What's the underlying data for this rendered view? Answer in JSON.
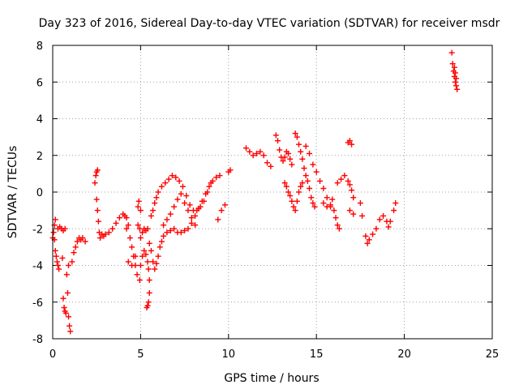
{
  "chart_data": {
    "type": "scatter",
    "title": "Day 323 of 2016, Sidereal Day-to-day VTEC variation (SDTVAR) for receiver msdr",
    "xlabel": "GPS time / hours",
    "ylabel": "SDTVAR / TECUs",
    "xlim": [
      0,
      25
    ],
    "ylim": [
      -8,
      8
    ],
    "xticks": [
      0,
      5,
      10,
      15,
      20,
      25
    ],
    "yticks": [
      -8,
      -6,
      -4,
      -2,
      0,
      2,
      4,
      6,
      8
    ],
    "grid": true,
    "marker": "+",
    "color": "#ff0000",
    "series": [
      {
        "name": "SDTVAR",
        "points": [
          [
            0.0,
            -2.5
          ],
          [
            0.05,
            -2.2
          ],
          [
            0.1,
            -1.8
          ],
          [
            0.15,
            -1.5
          ],
          [
            0.1,
            -2.6
          ],
          [
            0.15,
            -3.2
          ],
          [
            0.2,
            -3.5
          ],
          [
            0.25,
            -3.8
          ],
          [
            0.3,
            -4.0
          ],
          [
            0.35,
            -4.2
          ],
          [
            0.3,
            -2.0
          ],
          [
            0.4,
            -1.9
          ],
          [
            0.5,
            -2.0
          ],
          [
            0.6,
            -2.1
          ],
          [
            0.7,
            -2.0
          ],
          [
            0.55,
            -3.6
          ],
          [
            0.6,
            -5.8
          ],
          [
            0.65,
            -6.3
          ],
          [
            0.7,
            -6.5
          ],
          [
            0.75,
            -6.6
          ],
          [
            0.8,
            -4.5
          ],
          [
            0.85,
            -5.5
          ],
          [
            0.9,
            -6.8
          ],
          [
            0.95,
            -7.3
          ],
          [
            1.0,
            -7.6
          ],
          [
            0.9,
            -4.0
          ],
          [
            1.1,
            -3.8
          ],
          [
            1.2,
            -3.3
          ],
          [
            1.3,
            -3.0
          ],
          [
            1.4,
            -2.7
          ],
          [
            1.5,
            -2.5
          ],
          [
            1.6,
            -2.6
          ],
          [
            1.7,
            -2.5
          ],
          [
            1.85,
            -2.7
          ],
          [
            2.4,
            0.5
          ],
          [
            2.45,
            0.9
          ],
          [
            2.5,
            1.1
          ],
          [
            2.55,
            1.2
          ],
          [
            2.5,
            -0.4
          ],
          [
            2.55,
            -1.0
          ],
          [
            2.6,
            -1.6
          ],
          [
            2.65,
            -2.2
          ],
          [
            2.7,
            -2.5
          ],
          [
            2.8,
            -2.3
          ],
          [
            2.9,
            -2.4
          ],
          [
            3.0,
            -2.3
          ],
          [
            3.2,
            -2.2
          ],
          [
            3.4,
            -2.0
          ],
          [
            3.6,
            -1.7
          ],
          [
            3.8,
            -1.4
          ],
          [
            4.0,
            -1.2
          ],
          [
            4.2,
            -1.4
          ],
          [
            4.3,
            -1.8
          ],
          [
            4.4,
            -2.5
          ],
          [
            4.5,
            -3.0
          ],
          [
            4.6,
            -3.5
          ],
          [
            4.7,
            -4.0
          ],
          [
            4.8,
            -4.5
          ],
          [
            4.95,
            -4.8
          ],
          [
            5.0,
            -4.0
          ],
          [
            5.1,
            -3.5
          ],
          [
            5.2,
            -3.2
          ],
          [
            5.3,
            -3.4
          ],
          [
            5.4,
            -3.8
          ],
          [
            5.45,
            -4.2
          ],
          [
            5.5,
            -4.8
          ],
          [
            5.5,
            -5.5
          ],
          [
            5.45,
            -6.0
          ],
          [
            5.4,
            -6.2
          ],
          [
            5.35,
            -6.3
          ],
          [
            4.1,
            -1.3
          ],
          [
            4.2,
            -2.0
          ],
          [
            4.3,
            -3.8
          ],
          [
            4.5,
            -4.0
          ],
          [
            4.7,
            -3.5
          ],
          [
            4.85,
            -1.8
          ],
          [
            4.9,
            -0.5
          ],
          [
            4.85,
            -0.8
          ],
          [
            5.0,
            -1.0
          ],
          [
            4.95,
            -2.0
          ],
          [
            5.0,
            -2.5
          ],
          [
            5.1,
            -2.2
          ],
          [
            5.2,
            -2.0
          ],
          [
            5.3,
            -2.1
          ],
          [
            5.4,
            -2.0
          ],
          [
            5.5,
            -2.8
          ],
          [
            5.6,
            -3.2
          ],
          [
            5.7,
            -3.8
          ],
          [
            5.8,
            -4.2
          ],
          [
            5.9,
            -3.9
          ],
          [
            6.0,
            -3.5
          ],
          [
            6.1,
            -3.0
          ],
          [
            6.2,
            -2.7
          ],
          [
            6.3,
            -2.4
          ],
          [
            6.5,
            -2.2
          ],
          [
            6.7,
            -2.1
          ],
          [
            6.9,
            -2.0
          ],
          [
            7.1,
            -2.2
          ],
          [
            7.3,
            -2.2
          ],
          [
            7.5,
            -2.1
          ],
          [
            7.7,
            -2.0
          ],
          [
            7.9,
            -1.7
          ],
          [
            8.1,
            -1.3
          ],
          [
            8.3,
            -0.9
          ],
          [
            8.5,
            -0.5
          ],
          [
            8.7,
            -0.1
          ],
          [
            8.9,
            0.3
          ],
          [
            9.1,
            0.6
          ],
          [
            9.3,
            0.8
          ],
          [
            9.5,
            0.9
          ],
          [
            5.6,
            -1.3
          ],
          [
            5.7,
            -1.0
          ],
          [
            5.8,
            -0.6
          ],
          [
            5.9,
            -0.3
          ],
          [
            6.0,
            0.0
          ],
          [
            6.2,
            0.3
          ],
          [
            6.4,
            0.5
          ],
          [
            6.6,
            0.7
          ],
          [
            6.8,
            0.9
          ],
          [
            7.0,
            0.8
          ],
          [
            7.2,
            0.6
          ],
          [
            7.4,
            0.3
          ],
          [
            7.6,
            -0.2
          ],
          [
            7.8,
            -0.7
          ],
          [
            8.0,
            -1.0
          ],
          [
            8.2,
            -1.0
          ],
          [
            8.4,
            -0.8
          ],
          [
            8.6,
            -0.5
          ],
          [
            8.8,
            0.0
          ],
          [
            9.0,
            0.5
          ],
          [
            6.3,
            -1.8
          ],
          [
            6.5,
            -1.5
          ],
          [
            6.7,
            -1.2
          ],
          [
            6.9,
            -0.8
          ],
          [
            7.1,
            -0.4
          ],
          [
            7.3,
            -0.1
          ],
          [
            7.5,
            -0.6
          ],
          [
            7.7,
            -1.0
          ],
          [
            7.9,
            -1.4
          ],
          [
            8.1,
            -1.8
          ],
          [
            9.4,
            -1.5
          ],
          [
            9.6,
            -1.0
          ],
          [
            9.8,
            -0.7
          ],
          [
            10.0,
            1.1
          ],
          [
            10.1,
            1.2
          ],
          [
            11.0,
            2.4
          ],
          [
            11.2,
            2.2
          ],
          [
            11.4,
            2.0
          ],
          [
            11.6,
            2.1
          ],
          [
            11.8,
            2.2
          ],
          [
            12.0,
            2.0
          ],
          [
            12.2,
            1.6
          ],
          [
            12.4,
            1.4
          ],
          [
            12.7,
            3.1
          ],
          [
            12.8,
            2.8
          ],
          [
            12.9,
            2.3
          ],
          [
            13.0,
            1.9
          ],
          [
            13.1,
            1.7
          ],
          [
            13.2,
            1.9
          ],
          [
            13.3,
            2.2
          ],
          [
            13.4,
            2.1
          ],
          [
            13.5,
            1.8
          ],
          [
            13.6,
            1.5
          ],
          [
            13.2,
            0.5
          ],
          [
            13.3,
            0.3
          ],
          [
            13.4,
            0.0
          ],
          [
            13.5,
            -0.2
          ],
          [
            13.6,
            -0.5
          ],
          [
            13.7,
            -0.8
          ],
          [
            13.8,
            -1.0
          ],
          [
            13.9,
            -0.5
          ],
          [
            14.0,
            0.0
          ],
          [
            14.1,
            0.3
          ],
          [
            14.2,
            0.5
          ],
          [
            13.8,
            3.2
          ],
          [
            13.9,
            3.0
          ],
          [
            14.0,
            2.6
          ],
          [
            14.1,
            2.2
          ],
          [
            14.2,
            1.8
          ],
          [
            14.3,
            1.3
          ],
          [
            14.4,
            0.9
          ],
          [
            14.5,
            0.6
          ],
          [
            14.6,
            0.2
          ],
          [
            14.7,
            -0.3
          ],
          [
            14.8,
            -0.6
          ],
          [
            14.9,
            -0.8
          ],
          [
            14.4,
            2.5
          ],
          [
            14.6,
            2.1
          ],
          [
            14.8,
            1.5
          ],
          [
            15.0,
            1.1
          ],
          [
            15.2,
            0.6
          ],
          [
            15.4,
            0.2
          ],
          [
            15.6,
            -0.3
          ],
          [
            15.8,
            -0.8
          ],
          [
            15.4,
            -0.6
          ],
          [
            15.6,
            -0.8
          ],
          [
            15.8,
            -0.7
          ],
          [
            15.9,
            -0.4
          ],
          [
            16.0,
            -1.0
          ],
          [
            16.1,
            -1.4
          ],
          [
            16.2,
            -1.8
          ],
          [
            16.3,
            -2.0
          ],
          [
            16.2,
            0.5
          ],
          [
            16.4,
            0.7
          ],
          [
            16.6,
            0.9
          ],
          [
            16.8,
            0.6
          ],
          [
            16.8,
            2.7
          ],
          [
            16.9,
            2.8
          ],
          [
            17.0,
            2.6
          ],
          [
            16.9,
            0.4
          ],
          [
            17.0,
            0.1
          ],
          [
            17.1,
            -0.3
          ],
          [
            16.9,
            -1.0
          ],
          [
            17.1,
            -1.2
          ],
          [
            17.5,
            -0.6
          ],
          [
            17.6,
            -1.3
          ],
          [
            17.8,
            -2.4
          ],
          [
            17.9,
            -2.8
          ],
          [
            18.0,
            -2.6
          ],
          [
            18.2,
            -2.3
          ],
          [
            18.4,
            -2.0
          ],
          [
            18.6,
            -1.5
          ],
          [
            18.8,
            -1.3
          ],
          [
            19.0,
            -1.6
          ],
          [
            19.1,
            -1.9
          ],
          [
            19.2,
            -1.6
          ],
          [
            19.4,
            -1.0
          ],
          [
            19.5,
            -0.6
          ],
          [
            22.7,
            7.6
          ],
          [
            22.75,
            7.0
          ],
          [
            22.8,
            6.6
          ],
          [
            22.85,
            6.3
          ],
          [
            22.9,
            6.0
          ],
          [
            22.95,
            5.8
          ],
          [
            23.0,
            5.6
          ],
          [
            22.85,
            6.8
          ],
          [
            22.9,
            6.5
          ],
          [
            22.95,
            6.2
          ]
        ]
      }
    ]
  }
}
